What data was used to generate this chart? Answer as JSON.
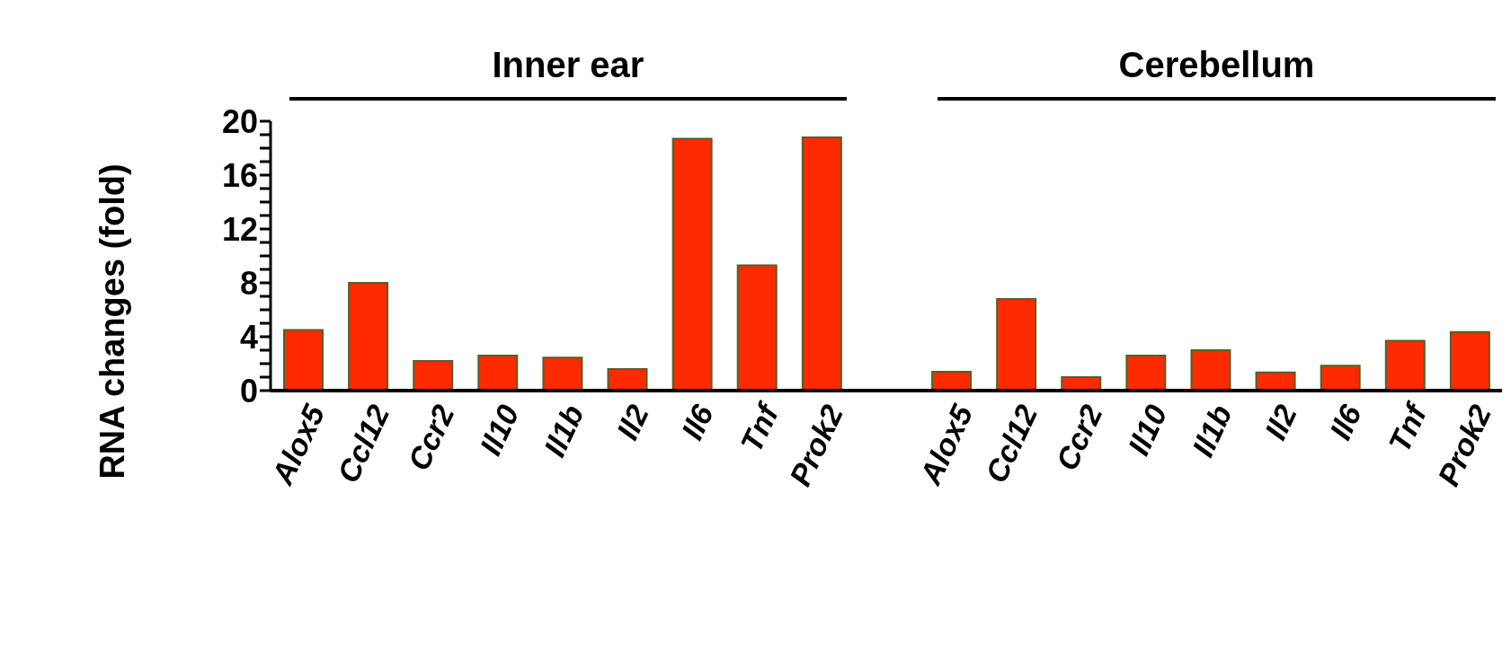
{
  "chart_data": {
    "type": "bar",
    "ylabel": "RNA changes (fold)",
    "annotations": [
      "Inner ear",
      "Cerebellum"
    ],
    "categories": [
      "Alox5",
      "Ccl12",
      "Ccr2",
      "Il10",
      "Il1b",
      "Il2",
      "Il6",
      "Tnf",
      "Prok2",
      null,
      "Alox5",
      "Ccl12",
      "Ccr2",
      "Il10",
      "Il1b",
      "Il2",
      "Il6",
      "Tnf",
      "Prok2"
    ],
    "values": [
      4.5,
      8.0,
      2.2,
      2.6,
      2.45,
      1.6,
      18.7,
      9.3,
      18.8,
      null,
      1.4,
      6.8,
      1.0,
      2.6,
      3.0,
      1.35,
      1.85,
      3.7,
      4.35
    ],
    "color": "#ff2a00",
    "ylim": [
      0,
      20
    ],
    "yticks": [
      0,
      {
        "value": 1,
        "label": null
      },
      {
        "value": 2,
        "label": null
      },
      {
        "value": 3,
        "label": null
      },
      4,
      {
        "value": 5,
        "label": null
      },
      {
        "value": 6,
        "label": null
      },
      {
        "value": 7,
        "label": null
      },
      8,
      {
        "value": 9,
        "label": null
      },
      {
        "value": 10,
        "label": null
      },
      {
        "value": 11,
        "label": null
      },
      12,
      {
        "value": 13,
        "label": null
      },
      {
        "value": 14,
        "label": null
      },
      {
        "value": 15,
        "label": null
      },
      16,
      {
        "value": 17,
        "label": null
      },
      {
        "value": 18,
        "label": null
      },
      {
        "value": 19,
        "label": null
      },
      20
    ],
    "grid": false,
    "legend": false
  }
}
